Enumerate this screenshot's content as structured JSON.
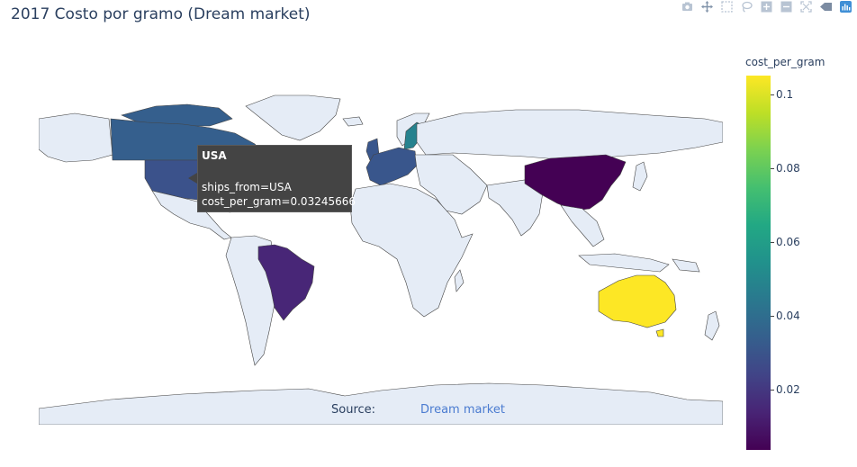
{
  "title": "2017 Costo por gramo (Dream market)",
  "modebar": {
    "icons": [
      "camera-icon",
      "pan-icon",
      "box-select-icon",
      "lasso-icon",
      "zoom-in-icon",
      "zoom-out-icon",
      "autoscale-icon",
      "hover-icon",
      "plotly-logo-icon"
    ]
  },
  "map": {
    "colors": {
      "land": "#e5ecf6",
      "border": "#444444",
      "usa": "#3b528b",
      "canada": "#355f8d",
      "brazil": "#482677",
      "china": "#440154",
      "australia": "#fde725",
      "sweden": "#26828e",
      "europe": "#39568c"
    }
  },
  "source": {
    "label": "Source:",
    "link_text": "Dream market"
  },
  "colorbar": {
    "title": "cost_per_gram",
    "ticks": [
      "0.1",
      "0.08",
      "0.06",
      "0.04",
      "0.02"
    ]
  },
  "tooltip": {
    "title": "USA",
    "line1": "ships_from=USA",
    "line2": "cost_per_gram=0.03245666"
  },
  "chart_data": {
    "type": "choropleth",
    "title": "2017 Costo por gramo (Dream market)",
    "colorscale": "viridis",
    "color_range": [
      0.003,
      0.105
    ],
    "locations": [
      {
        "ships_from": "USA",
        "cost_per_gram": 0.03245666
      },
      {
        "ships_from": "Canada",
        "cost_per_gram": 0.035
      },
      {
        "ships_from": "Brazil",
        "cost_per_gram": 0.018
      },
      {
        "ships_from": "China",
        "cost_per_gram": 0.004
      },
      {
        "ships_from": "Australia",
        "cost_per_gram": 0.104
      },
      {
        "ships_from": "Sweden",
        "cost_per_gram": 0.05
      },
      {
        "ships_from": "Germany",
        "cost_per_gram": 0.03
      },
      {
        "ships_from": "France",
        "cost_per_gram": 0.03
      },
      {
        "ships_from": "UK",
        "cost_per_gram": 0.03
      },
      {
        "ships_from": "Spain",
        "cost_per_gram": 0.03
      },
      {
        "ships_from": "Netherlands",
        "cost_per_gram": 0.03
      }
    ]
  }
}
